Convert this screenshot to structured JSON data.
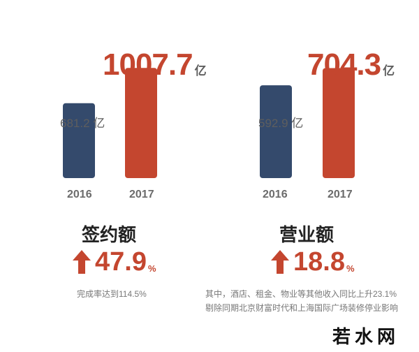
{
  "chart_data": [
    {
      "type": "bar",
      "title": "签约额",
      "categories": [
        "2016",
        "2017"
      ],
      "values": [
        681.2,
        1007.7
      ],
      "value_labels": [
        "681.2",
        "1007.7"
      ],
      "unit": "亿",
      "ylim": [
        0,
        1100
      ],
      "growth": "47.9",
      "growth_unit": "%",
      "note_lines": [
        "完成率达到114.5%"
      ],
      "colors": [
        "#344a6c",
        "#c4462f"
      ],
      "grid": false
    },
    {
      "type": "bar",
      "title": "营业额",
      "categories": [
        "2016",
        "2017"
      ],
      "values": [
        592.9,
        704.3
      ],
      "value_labels": [
        "592.9",
        "704.3"
      ],
      "unit": "亿",
      "ylim": [
        0,
        770
      ],
      "growth": "18.8",
      "growth_unit": "%",
      "note_lines": [
        "其中，酒店、租金、物业等其他收入同比上升23.1%",
        "剔除同期北京财富时代和上海国际广场装修停业影响"
      ],
      "colors": [
        "#344a6c",
        "#c4462f"
      ],
      "grid": false
    }
  ],
  "watermark": "若水网",
  "colors": {
    "accent": "#c4462f",
    "navy": "#344a6c"
  }
}
